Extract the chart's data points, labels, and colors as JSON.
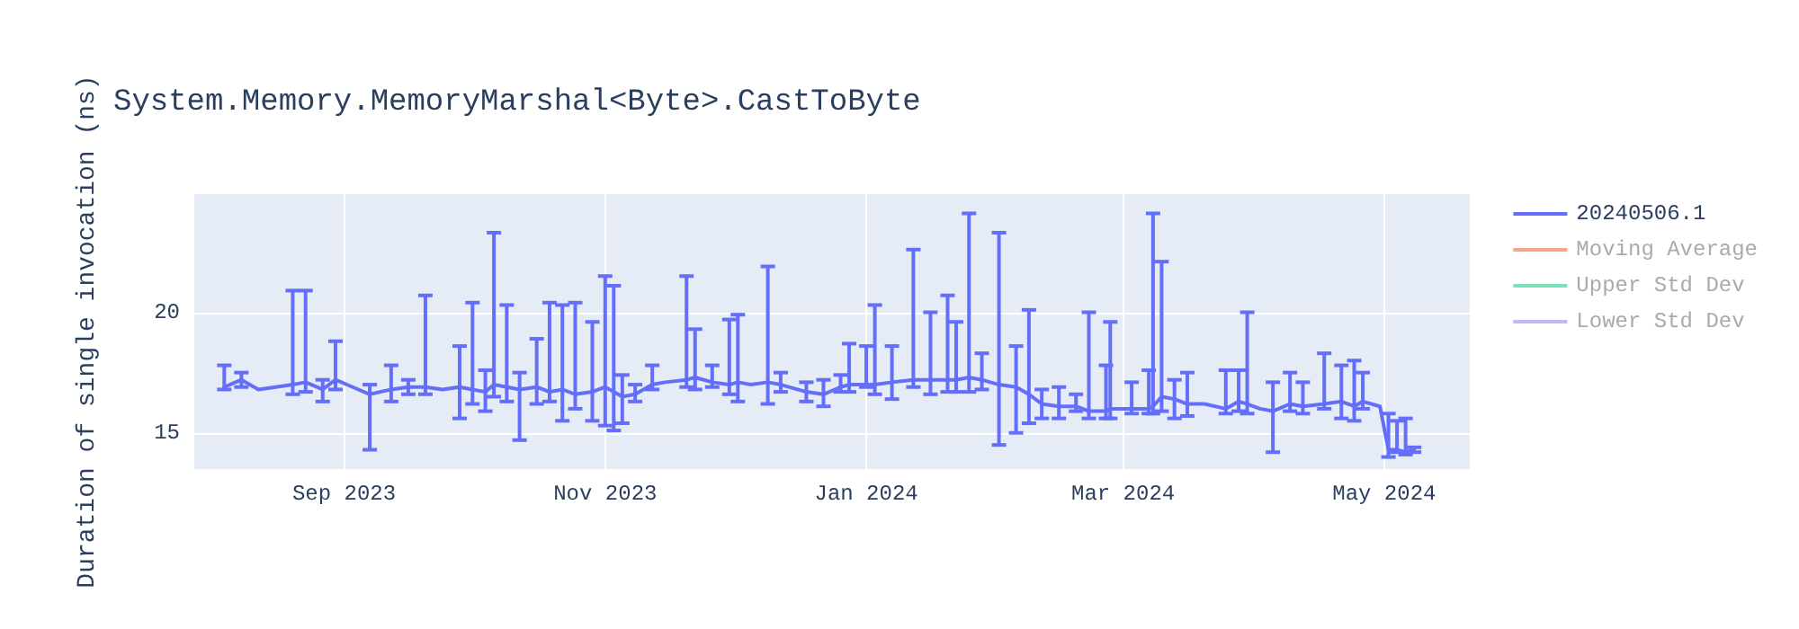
{
  "chart_data": {
    "type": "line",
    "title": "System.Memory.MemoryMarshal<Byte>.CastToByte",
    "ylabel": "Duration of single invocation (ns)",
    "xlim": [
      "2023-07-28",
      "2024-05-21"
    ],
    "xticks": [
      {
        "value": "2023-09-01",
        "label": "Sep 2023"
      },
      {
        "value": "2023-11-01",
        "label": "Nov 2023"
      },
      {
        "value": "2024-01-01",
        "label": "Jan 2024"
      },
      {
        "value": "2024-03-01",
        "label": "Mar 2024"
      },
      {
        "value": "2024-05-01",
        "label": "May 2024"
      }
    ],
    "ylim": [
      13.5,
      24.9
    ],
    "yticks": [
      15,
      20
    ],
    "grid": true,
    "legend": "top right",
    "marker": "none",
    "line_style": "solid",
    "x": [
      "2023-08-04",
      "2023-08-08",
      "2023-08-12",
      "2023-08-16",
      "2023-08-20",
      "2023-08-23",
      "2023-08-27",
      "2023-08-30",
      "2023-09-03",
      "2023-09-07",
      "2023-09-12",
      "2023-09-16",
      "2023-09-20",
      "2023-09-24",
      "2023-09-28",
      "2023-10-01",
      "2023-10-04",
      "2023-10-06",
      "2023-10-09",
      "2023-10-12",
      "2023-10-16",
      "2023-10-19",
      "2023-10-22",
      "2023-10-25",
      "2023-10-29",
      "2023-11-01",
      "2023-11-03",
      "2023-11-05",
      "2023-11-08",
      "2023-11-12",
      "2023-11-15",
      "2023-11-20",
      "2023-11-22",
      "2023-11-26",
      "2023-11-30",
      "2023-12-02",
      "2023-12-05",
      "2023-12-09",
      "2023-12-12",
      "2023-12-18",
      "2023-12-22",
      "2023-12-26",
      "2023-12-28",
      "2024-01-01",
      "2024-01-03",
      "2024-01-07",
      "2024-01-12",
      "2024-01-16",
      "2024-01-20",
      "2024-01-22",
      "2024-01-25",
      "2024-01-28",
      "2024-02-01",
      "2024-02-05",
      "2024-02-08",
      "2024-02-11",
      "2024-02-15",
      "2024-02-19",
      "2024-02-22",
      "2024-02-26",
      "2024-02-27",
      "2024-03-03",
      "2024-03-07",
      "2024-03-08",
      "2024-03-10",
      "2024-03-13",
      "2024-03-16",
      "2024-03-20",
      "2024-03-25",
      "2024-03-28",
      "2024-03-30",
      "2024-04-02",
      "2024-04-05",
      "2024-04-09",
      "2024-04-12",
      "2024-04-17",
      "2024-04-21",
      "2024-04-24",
      "2024-04-26",
      "2024-04-30",
      "2024-05-02",
      "2024-05-04",
      "2024-05-06",
      "2024-05-08"
    ],
    "series": [
      {
        "name": "20240506.1",
        "color": "#636efa",
        "values": [
          16.9,
          17.2,
          16.8,
          16.9,
          17.0,
          17.1,
          16.8,
          17.2,
          16.9,
          16.6,
          16.8,
          16.9,
          16.9,
          16.8,
          16.9,
          16.8,
          16.7,
          17.0,
          16.9,
          16.8,
          16.9,
          16.7,
          16.8,
          16.6,
          16.7,
          16.9,
          16.7,
          16.5,
          16.6,
          17.0,
          17.1,
          17.2,
          17.3,
          17.1,
          17.0,
          17.1,
          17.0,
          17.1,
          17.0,
          16.7,
          16.6,
          16.9,
          17.0,
          17.0,
          17.0,
          17.1,
          17.2,
          17.2,
          17.2,
          17.2,
          17.3,
          17.2,
          17.0,
          16.9,
          16.6,
          16.2,
          16.1,
          16.1,
          15.9,
          15.9,
          16.0,
          16.0,
          16.0,
          16.1,
          16.5,
          16.4,
          16.2,
          16.2,
          16.0,
          16.3,
          16.2,
          16.0,
          15.9,
          16.2,
          16.1,
          16.2,
          16.3,
          16.1,
          16.3,
          16.1,
          14.3,
          14.3,
          14.2,
          14.3
        ],
        "errors": [
          [
            16.8,
            17.8
          ],
          [
            16.9,
            17.5
          ],
          null,
          null,
          [
            16.6,
            20.9
          ],
          [
            16.7,
            20.9
          ],
          [
            16.3,
            17.2
          ],
          [
            16.8,
            18.8
          ],
          null,
          [
            14.3,
            17.0
          ],
          [
            16.3,
            17.8
          ],
          [
            16.6,
            17.2
          ],
          [
            16.6,
            20.7
          ],
          null,
          [
            15.6,
            18.6
          ],
          [
            16.2,
            20.4
          ],
          [
            15.9,
            17.6
          ],
          [
            16.5,
            23.3
          ],
          [
            16.3,
            20.3
          ],
          [
            14.7,
            17.5
          ],
          [
            16.2,
            18.9
          ],
          [
            16.3,
            20.4
          ],
          [
            15.5,
            20.3
          ],
          [
            16.0,
            20.4
          ],
          [
            15.5,
            19.6
          ],
          [
            15.3,
            21.5
          ],
          [
            15.1,
            21.1
          ],
          [
            15.4,
            17.4
          ],
          [
            16.3,
            17.0
          ],
          [
            16.8,
            17.8
          ],
          null,
          [
            16.9,
            21.5
          ],
          [
            16.8,
            19.3
          ],
          [
            16.9,
            17.8
          ],
          [
            16.6,
            19.7
          ],
          [
            16.3,
            19.9
          ],
          null,
          [
            16.2,
            21.9
          ],
          [
            16.7,
            17.5
          ],
          [
            16.3,
            17.1
          ],
          [
            16.1,
            17.2
          ],
          [
            16.7,
            17.4
          ],
          [
            16.7,
            18.7
          ],
          [
            16.9,
            18.6
          ],
          [
            16.6,
            20.3
          ],
          [
            16.4,
            18.6
          ],
          [
            16.9,
            22.6
          ],
          [
            16.6,
            20.0
          ],
          [
            16.7,
            20.7
          ],
          [
            16.7,
            19.6
          ],
          [
            16.7,
            24.1
          ],
          [
            16.8,
            18.3
          ],
          [
            14.5,
            23.3
          ],
          [
            15.0,
            18.6
          ],
          [
            15.4,
            20.1
          ],
          [
            15.6,
            16.8
          ],
          [
            15.6,
            16.9
          ],
          [
            15.9,
            16.6
          ],
          [
            15.6,
            20.0
          ],
          [
            15.6,
            17.8
          ],
          [
            15.6,
            19.6
          ],
          [
            15.8,
            17.1
          ],
          [
            15.8,
            17.6
          ],
          [
            15.8,
            24.1
          ],
          [
            15.9,
            22.1
          ],
          [
            15.6,
            17.2
          ],
          [
            15.7,
            17.5
          ],
          null,
          [
            15.8,
            17.6
          ],
          [
            15.9,
            17.6
          ],
          [
            15.8,
            20.0
          ],
          null,
          [
            14.2,
            17.1
          ],
          [
            15.9,
            17.5
          ],
          [
            15.8,
            17.1
          ],
          [
            16.0,
            18.3
          ],
          [
            15.6,
            17.8
          ],
          [
            15.5,
            18.0
          ],
          [
            16.0,
            17.5
          ],
          null,
          [
            14.0,
            15.8
          ],
          [
            14.2,
            15.5
          ],
          [
            14.1,
            15.6
          ],
          [
            14.2,
            14.4
          ]
        ]
      },
      {
        "name": "Moving Average",
        "color": "#f4a58a",
        "values": [
          null,
          null,
          null,
          null,
          null,
          null,
          null,
          null,
          null,
          null,
          null,
          null,
          null,
          null,
          null,
          null,
          null,
          null,
          null,
          null,
          null,
          null,
          null,
          null,
          null,
          null,
          null,
          null,
          null,
          null,
          null,
          null,
          null,
          null,
          null,
          null,
          null,
          null,
          null,
          null,
          null,
          null,
          null,
          null,
          null,
          null,
          null,
          null,
          null,
          null,
          null,
          null,
          null,
          null,
          null,
          null,
          null,
          null,
          null,
          null,
          null,
          null,
          null,
          null,
          null,
          null,
          null,
          null,
          null,
          null,
          null,
          null,
          null,
          null,
          null,
          null,
          null,
          null,
          null,
          null,
          null,
          null,
          null,
          null
        ]
      },
      {
        "name": "Upper Std Dev",
        "color": "#7ee2b8",
        "values": [
          null,
          null,
          null,
          null,
          null,
          null,
          null,
          null,
          null,
          null,
          null,
          null,
          null,
          null,
          null,
          null,
          null,
          null,
          null,
          null,
          null,
          null,
          null,
          null,
          null,
          null,
          null,
          null,
          null,
          null,
          null,
          null,
          null,
          null,
          null,
          null,
          null,
          null,
          null,
          null,
          null,
          null,
          null,
          null,
          null,
          null,
          null,
          null,
          null,
          null,
          null,
          null,
          null,
          null,
          null,
          null,
          null,
          null,
          null,
          null,
          null,
          null,
          null,
          null,
          null,
          null,
          null,
          null,
          null,
          null,
          null,
          null,
          null,
          null,
          null,
          null,
          null,
          null,
          null,
          null,
          null,
          null,
          null,
          null
        ]
      },
      {
        "name": "Lower Std Dev",
        "color": "#c6b4f7",
        "values": [
          null,
          null,
          null,
          null,
          null,
          null,
          null,
          null,
          null,
          null,
          null,
          null,
          null,
          null,
          null,
          null,
          null,
          null,
          null,
          null,
          null,
          null,
          null,
          null,
          null,
          null,
          null,
          null,
          null,
          null,
          null,
          null,
          null,
          null,
          null,
          null,
          null,
          null,
          null,
          null,
          null,
          null,
          null,
          null,
          null,
          null,
          null,
          null,
          null,
          null,
          null,
          null,
          null,
          null,
          null,
          null,
          null,
          null,
          null,
          null,
          null,
          null,
          null,
          null,
          null,
          null,
          null,
          null,
          null,
          null,
          null,
          null,
          null,
          null,
          null,
          null,
          null,
          null,
          null,
          null,
          null,
          null,
          null,
          null
        ]
      }
    ]
  }
}
